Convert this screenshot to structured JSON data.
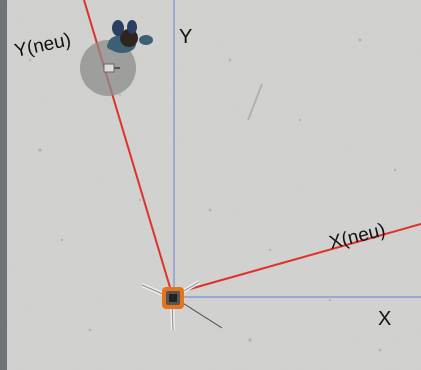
{
  "axes": {
    "x_label": "X",
    "y_label": "Y",
    "x_new_label": "X(neu)",
    "y_new_label": "Y(neu)"
  },
  "colors": {
    "floor": "#d4d4d2",
    "axis_blue": "#7d8fd6",
    "axis_red": "#e0302a",
    "device_orange": "#e8731f",
    "person_shadow": "#8c8c8c",
    "strip": "#6f747a"
  },
  "icons": {
    "device": "survey-instrument-icon",
    "person": "person-top-view-icon"
  }
}
